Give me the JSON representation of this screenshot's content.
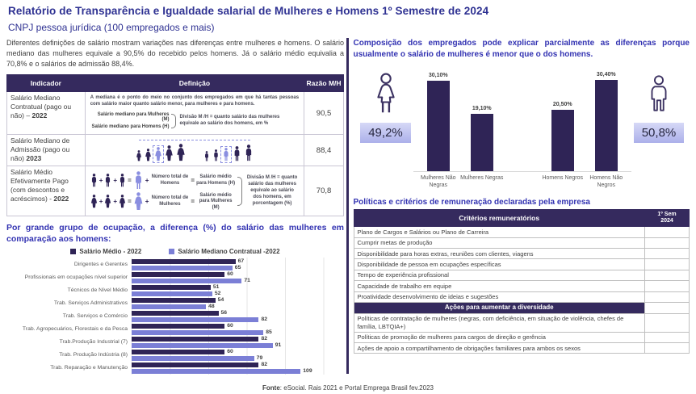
{
  "page": {
    "title": "Relatório de Transparência e Igualdade salarial de Mulheres e Homens  1º Semestre de 2024",
    "subtitle": "CNPJ pessoa jurídica (100 empregados e mais)",
    "footer_label": "Fonte",
    "footer_text": ": eSocial. Rais 2021 e Portal Emprega Brasil fev.2023"
  },
  "left": {
    "intro": "Diferentes definições de salário mostram variações nas diferenças entre mulheres e homens. O salário mediano das mulheres equivale a 90,5% do recebido pelos homens. Já o salário médio equivalia a 70,8% e o salários de admissão 88,4%.",
    "table": {
      "headers": [
        "Indicador",
        "Definição",
        "Razão M/H"
      ],
      "rows": [
        {
          "indicator": "Salário Mediano Contratual  (pago ou não) – ",
          "year": "2022",
          "ratio": "90,5"
        },
        {
          "indicator": "Salário Mediano de Admissão (pago ou não) ",
          "year": "2023",
          "ratio": "88,4"
        },
        {
          "indicator": "Salário Médio Efetivamente  Pago (com descontos e acréscimos) - ",
          "year": "2022",
          "ratio": "70,8"
        }
      ],
      "median_def": {
        "paragraph": "A mediana é o ponto do meio no conjunto dos empregados em que há tantas pessoas com salário maior quanto salário menor, para mulheres e para homens.",
        "line_women": "Salário mediano para Mulheres (M)",
        "line_men": "Salário mediano para Homens (H)",
        "note": "Divisão M /H = quanto salário das mulheres equivale ao salário dos homens, em %"
      },
      "mean_def": {
        "line1_total": "Número total de Homens",
        "line1_result": "Salário médio para Homens (H)",
        "line2_total": "Número total de Mulheres",
        "line2_result": "Salário médio para Mulheres (M)",
        "note": "Divisão M /H = quanto salário das mulheres equivale ao salário dos homens, em porcentagem (%)"
      }
    },
    "chart_heading": "Por grande grupo de ocupação, a diferença (%) do salário das mulheres em comparação aos homens:"
  },
  "right": {
    "intro": "Composição dos empregados pode explicar parcialmente as diferenças porque usualmente o salário de mulheres é menor que o dos homens.",
    "women_share": "49,2%",
    "men_share": "50,8%",
    "policies_heading": "Políticas e critérios de remuneração declaradas pela empresa",
    "table": {
      "col_criteria": "Critérios remuneratórios",
      "col_period_line1": "1º Sem",
      "col_period_line2": "2024",
      "criteria": [
        "Plano de Cargos e Salários ou Plano de Carreira",
        "Cumprir metas de produção",
        "Disponibilidade para horas extras, reuniões com clientes, viagens",
        "Disponibilidade de pessoa em ocupações específicas",
        "Tempo de experiência profissional",
        "Capacidade de trabalho em equipe",
        "Proatividade desenvolvimento de ideias e sugestões"
      ],
      "diversity_heading": "Ações para aumentar a diversidade",
      "actions": [
        "Políticas de contratação de mulheres (negras, com deficiência, em situação de violência, chefes de família, LBTQIA+)",
        "Políticas de promoção de mulheres para cargos de direção e gerência",
        "Ações de apoio a compartilhamento de obrigações familiares para ambos os sexos"
      ]
    }
  },
  "icons": {
    "woman-icon": "outline female figure",
    "man-icon": "outline male figure",
    "person-icon": "filled person silhouette"
  },
  "colors": {
    "dark_purple": "#2F2456",
    "medium_purple": "#7B7FD6",
    "title_blue": "#2E3192",
    "heading_purple": "#3333B2",
    "chip_bg": "#C6C9F2",
    "body_text": "#3F3F3F"
  },
  "chart_data": [
    {
      "type": "bar",
      "orientation": "horizontal",
      "title": "Por grande grupo de ocupação, a diferença (%) do salário das mulheres em comparação aos homens",
      "categories": [
        "Dirigentes e Gerentes",
        "Profissionais em ocupações nível superior",
        "Técnicos de Nível Médio",
        "Trab. Serviços Administrativos",
        "Trab. Serviços e Comércio",
        "Trab. Agropecuários, Florestais e da Pesca",
        "Trab.Produção Industrial (7)",
        "Trab. Produção Indústria (8)",
        "Trab. Reparação e Manutenção"
      ],
      "series": [
        {
          "name": "Salário Médio - 2022",
          "color": "#2F2456",
          "values": [
            67,
            60,
            51,
            54,
            56,
            60,
            82,
            60,
            82
          ]
        },
        {
          "name": "Salário Mediano Contratual -2022",
          "color": "#7B7FD6",
          "values": [
            65,
            71,
            52,
            48,
            82,
            85,
            91,
            79,
            109
          ]
        }
      ],
      "xlim": [
        0,
        125
      ],
      "grid": true,
      "legend_position": "top"
    },
    {
      "type": "bar",
      "orientation": "vertical",
      "title": "Composição dos empregados pode explicar parcialmente as diferenças porque usualmente o salário de mulheres é menor que o dos homens.",
      "categories": [
        "Mulheres Não Negras",
        "Mulheres Negras",
        "Homens Negros",
        "Homens Não Negros"
      ],
      "values": [
        30.1,
        19.1,
        20.5,
        30.4
      ],
      "value_labels": [
        "30,10%",
        "19,10%",
        "20,50%",
        "30,40%"
      ],
      "side_labels": {
        "women": "49,2%",
        "men": "50,8%"
      },
      "bar_color": "#2F2456",
      "ylim": [
        0,
        35
      ],
      "grid": false
    }
  ]
}
